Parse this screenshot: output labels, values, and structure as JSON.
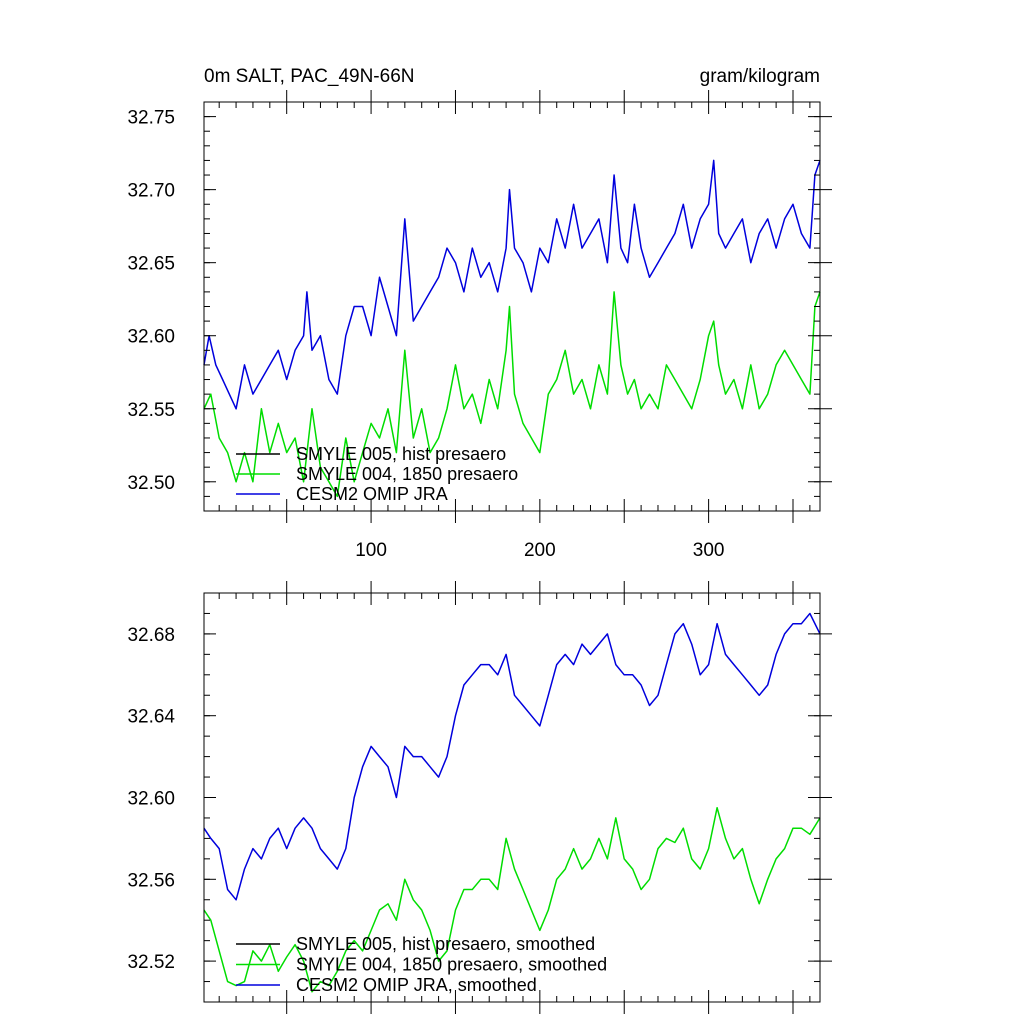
{
  "chart_data": [
    {
      "type": "line",
      "title": "0m SALT, PAC_49N-66N",
      "units": "gram/kilogram",
      "xlabel": "",
      "ylabel": "",
      "xlim": [
        1,
        366
      ],
      "ylim": [
        32.48,
        32.76
      ],
      "xticks": [
        100,
        200,
        300
      ],
      "yticks": [
        32.5,
        32.55,
        32.6,
        32.65,
        32.7,
        32.75
      ],
      "ytick_labels": [
        "32.50",
        "32.55",
        "32.60",
        "32.65",
        "32.70",
        "32.75"
      ],
      "x_major_step": 50,
      "x_labeled_step": 100,
      "y_minor_step": 0.01,
      "legend": [
        "SMYLE 005, hist presaero",
        "SMYLE 004, 1850 presaero",
        "CESM2 OMIP JRA"
      ],
      "legend_location": "bottom-left",
      "series": [
        {
          "name": "SMYLE 005, hist presaero",
          "color": "#000000",
          "x": [],
          "values": []
        },
        {
          "name": "SMYLE 004, 1850 presaero",
          "color": "#00dd00",
          "x": [
            1,
            5,
            10,
            15,
            20,
            25,
            30,
            35,
            40,
            45,
            50,
            55,
            60,
            65,
            70,
            75,
            80,
            85,
            90,
            95,
            100,
            105,
            110,
            115,
            120,
            125,
            130,
            135,
            140,
            145,
            150,
            155,
            160,
            165,
            170,
            175,
            180,
            182,
            185,
            190,
            195,
            200,
            205,
            210,
            215,
            220,
            225,
            230,
            235,
            240,
            244,
            248,
            252,
            256,
            260,
            265,
            270,
            275,
            280,
            285,
            290,
            295,
            300,
            303,
            306,
            310,
            315,
            320,
            325,
            330,
            335,
            340,
            345,
            350,
            355,
            360,
            363,
            366
          ],
          "values": [
            32.55,
            32.56,
            32.53,
            32.52,
            32.5,
            32.52,
            32.5,
            32.55,
            32.52,
            32.54,
            32.52,
            32.53,
            32.5,
            32.55,
            32.51,
            32.5,
            32.49,
            32.53,
            32.5,
            32.52,
            32.54,
            32.53,
            32.55,
            32.52,
            32.59,
            32.53,
            32.55,
            32.52,
            32.53,
            32.55,
            32.58,
            32.55,
            32.56,
            32.54,
            32.57,
            32.55,
            32.59,
            32.62,
            32.56,
            32.54,
            32.53,
            32.52,
            32.56,
            32.57,
            32.59,
            32.56,
            32.57,
            32.55,
            32.58,
            32.56,
            32.63,
            32.58,
            32.56,
            32.57,
            32.55,
            32.56,
            32.55,
            32.58,
            32.57,
            32.56,
            32.55,
            32.57,
            32.6,
            32.61,
            32.58,
            32.56,
            32.57,
            32.55,
            32.58,
            32.55,
            32.56,
            32.58,
            32.59,
            32.58,
            32.57,
            32.56,
            32.62,
            32.63
          ]
        },
        {
          "name": "CESM2 OMIP JRA",
          "color": "#0000dd",
          "x": [
            1,
            4,
            8,
            12,
            16,
            20,
            25,
            30,
            35,
            40,
            45,
            50,
            55,
            60,
            62,
            65,
            70,
            75,
            80,
            85,
            90,
            95,
            100,
            105,
            110,
            115,
            120,
            125,
            130,
            135,
            140,
            145,
            150,
            155,
            160,
            165,
            170,
            175,
            180,
            182,
            185,
            190,
            195,
            200,
            205,
            210,
            215,
            220,
            225,
            230,
            235,
            240,
            244,
            248,
            252,
            256,
            260,
            265,
            270,
            275,
            280,
            285,
            290,
            295,
            300,
            303,
            306,
            310,
            315,
            320,
            325,
            330,
            335,
            340,
            345,
            350,
            355,
            360,
            363,
            366
          ],
          "values": [
            32.58,
            32.6,
            32.58,
            32.57,
            32.56,
            32.55,
            32.58,
            32.56,
            32.57,
            32.58,
            32.59,
            32.57,
            32.59,
            32.6,
            32.63,
            32.59,
            32.6,
            32.57,
            32.56,
            32.6,
            32.62,
            32.62,
            32.6,
            32.64,
            32.62,
            32.6,
            32.68,
            32.61,
            32.62,
            32.63,
            32.64,
            32.66,
            32.65,
            32.63,
            32.66,
            32.64,
            32.65,
            32.63,
            32.66,
            32.7,
            32.66,
            32.65,
            32.63,
            32.66,
            32.65,
            32.68,
            32.66,
            32.69,
            32.66,
            32.67,
            32.68,
            32.65,
            32.71,
            32.66,
            32.65,
            32.69,
            32.66,
            32.64,
            32.65,
            32.66,
            32.67,
            32.69,
            32.66,
            32.68,
            32.69,
            32.72,
            32.67,
            32.66,
            32.67,
            32.68,
            32.65,
            32.67,
            32.68,
            32.66,
            32.68,
            32.69,
            32.67,
            32.66,
            32.71,
            32.72
          ]
        }
      ]
    },
    {
      "type": "line",
      "title": "",
      "xlabel": "",
      "ylabel": "",
      "xlim": [
        1,
        366
      ],
      "ylim": [
        32.5,
        32.7
      ],
      "xticks": [
        100,
        200,
        300
      ],
      "yticks": [
        32.52,
        32.56,
        32.6,
        32.64,
        32.68
      ],
      "ytick_labels": [
        "32.52",
        "32.56",
        "32.60",
        "32.64",
        "32.68"
      ],
      "x_major_step": 50,
      "x_labeled_step": 0,
      "y_minor_step": 0.01,
      "legend": [
        "SMYLE 005, hist presaero, smoothed",
        "SMYLE 004, 1850 presaero, smoothed",
        "CESM2 OMIP JRA, smoothed"
      ],
      "legend_location": "bottom-left",
      "series": [
        {
          "name": "SMYLE 005, hist presaero, smoothed",
          "color": "#000000",
          "x": [],
          "values": []
        },
        {
          "name": "SMYLE 004, 1850 presaero, smoothed",
          "color": "#00dd00",
          "x": [
            1,
            5,
            10,
            15,
            20,
            25,
            30,
            35,
            40,
            45,
            50,
            55,
            60,
            65,
            70,
            75,
            80,
            85,
            90,
            95,
            100,
            105,
            110,
            115,
            120,
            125,
            130,
            135,
            140,
            145,
            150,
            155,
            160,
            165,
            170,
            175,
            180,
            185,
            190,
            195,
            200,
            205,
            210,
            215,
            220,
            225,
            230,
            235,
            240,
            245,
            250,
            255,
            260,
            265,
            270,
            275,
            280,
            285,
            290,
            295,
            300,
            305,
            310,
            315,
            320,
            325,
            330,
            335,
            340,
            345,
            350,
            355,
            360,
            366
          ],
          "values": [
            32.545,
            32.54,
            32.525,
            32.51,
            32.508,
            32.51,
            32.525,
            32.52,
            32.528,
            32.515,
            32.522,
            32.528,
            32.52,
            32.505,
            32.51,
            32.508,
            32.515,
            32.525,
            32.53,
            32.525,
            32.535,
            32.545,
            32.548,
            32.54,
            32.56,
            32.55,
            32.545,
            32.535,
            32.52,
            32.525,
            32.545,
            32.555,
            32.555,
            32.56,
            32.56,
            32.555,
            32.58,
            32.565,
            32.555,
            32.545,
            32.535,
            32.545,
            32.56,
            32.565,
            32.575,
            32.565,
            32.57,
            32.58,
            32.57,
            32.59,
            32.57,
            32.565,
            32.555,
            32.56,
            32.575,
            32.58,
            32.578,
            32.585,
            32.57,
            32.565,
            32.575,
            32.595,
            32.58,
            32.57,
            32.575,
            32.56,
            32.548,
            32.56,
            32.57,
            32.575,
            32.585,
            32.585,
            32.582,
            32.59
          ]
        },
        {
          "name": "CESM2 OMIP JRA, smoothed",
          "color": "#0000dd",
          "x": [
            1,
            5,
            10,
            15,
            20,
            25,
            30,
            35,
            40,
            45,
            50,
            55,
            60,
            65,
            70,
            75,
            80,
            85,
            90,
            95,
            100,
            105,
            110,
            115,
            120,
            125,
            130,
            135,
            140,
            145,
            150,
            155,
            160,
            165,
            170,
            175,
            180,
            185,
            190,
            195,
            200,
            205,
            210,
            215,
            220,
            225,
            230,
            235,
            240,
            245,
            250,
            255,
            260,
            265,
            270,
            275,
            280,
            285,
            290,
            295,
            300,
            305,
            310,
            315,
            320,
            325,
            330,
            335,
            340,
            345,
            350,
            355,
            360,
            366
          ],
          "values": [
            32.585,
            32.58,
            32.575,
            32.555,
            32.55,
            32.565,
            32.575,
            32.57,
            32.58,
            32.585,
            32.575,
            32.585,
            32.59,
            32.585,
            32.575,
            32.57,
            32.565,
            32.575,
            32.6,
            32.615,
            32.625,
            32.62,
            32.615,
            32.6,
            32.625,
            32.62,
            32.62,
            32.615,
            32.61,
            32.62,
            32.64,
            32.655,
            32.66,
            32.665,
            32.665,
            32.66,
            32.67,
            32.65,
            32.645,
            32.64,
            32.635,
            32.65,
            32.665,
            32.67,
            32.665,
            32.675,
            32.67,
            32.675,
            32.68,
            32.665,
            32.66,
            32.66,
            32.655,
            32.645,
            32.65,
            32.665,
            32.68,
            32.685,
            32.675,
            32.66,
            32.665,
            32.685,
            32.67,
            32.665,
            32.66,
            32.655,
            32.65,
            32.655,
            32.67,
            32.68,
            32.685,
            32.685,
            32.69,
            32.68
          ]
        }
      ]
    }
  ]
}
